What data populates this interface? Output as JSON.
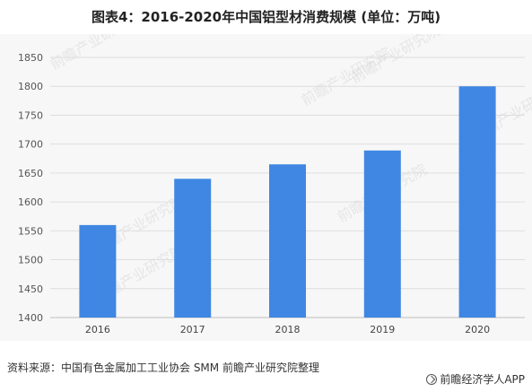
{
  "title": "图表4：2016-2020年中国铝型材消费规模 (单位：万吨)",
  "source": "资料来源：中国有色金属加工工业协会 SMM 前瞻产业研究院整理",
  "credit": "前瞻经济学人APP",
  "watermark": "前瞻产业研究院",
  "chart_data": {
    "type": "bar",
    "title": "图表4：2016-2020年中国铝型材消费规模 (单位：万吨)",
    "categories": [
      "2016",
      "2017",
      "2018",
      "2019",
      "2020"
    ],
    "values": [
      1560,
      1640,
      1665,
      1689,
      1800
    ],
    "ylim": [
      1400,
      1850
    ],
    "yticks": [
      1400,
      1450,
      1500,
      1550,
      1600,
      1650,
      1700,
      1750,
      1800,
      1850
    ],
    "grid": true,
    "bar_color": "#3f87e3",
    "xlabel": "",
    "ylabel": ""
  }
}
